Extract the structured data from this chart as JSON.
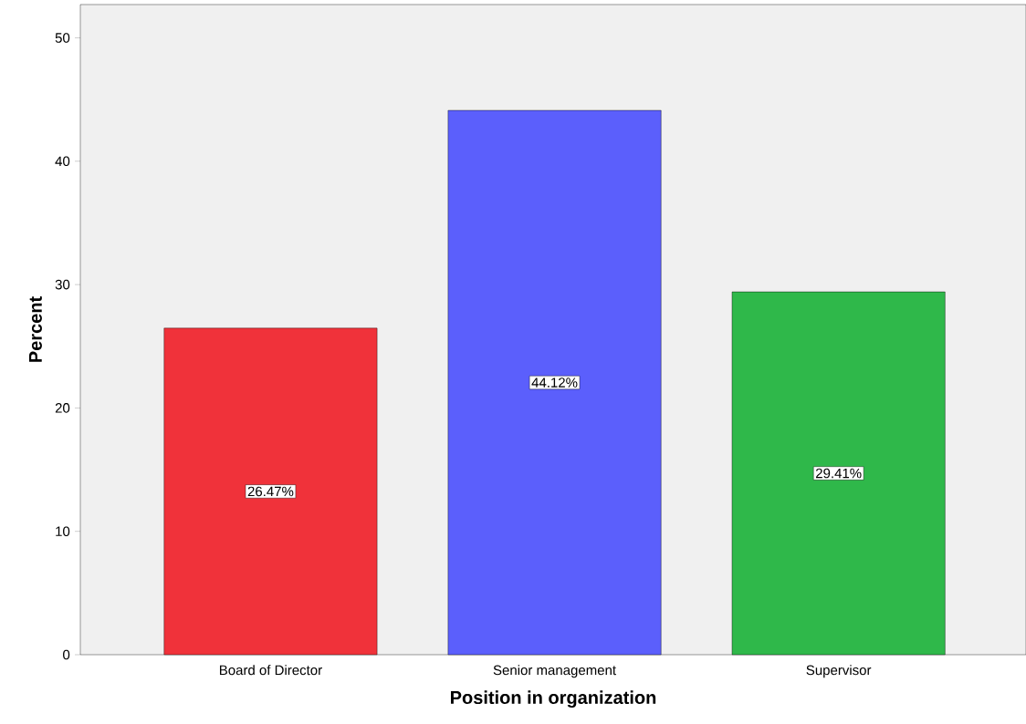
{
  "chart_data": {
    "type": "bar",
    "categories": [
      "Board of Director",
      "Senior management",
      "Supervisor"
    ],
    "values": [
      26.47,
      44.12,
      29.41
    ],
    "colors": [
      "#f0323a",
      "#5b5ffc",
      "#2fb84a"
    ],
    "value_labels": [
      "26.47%",
      "44.12%",
      "29.41%"
    ],
    "xlabel": "Position in organization",
    "ylabel": "Percent",
    "ylim": [
      0,
      52.7
    ],
    "yticks": [
      0,
      10,
      20,
      30,
      40,
      50
    ],
    "grid": false
  }
}
